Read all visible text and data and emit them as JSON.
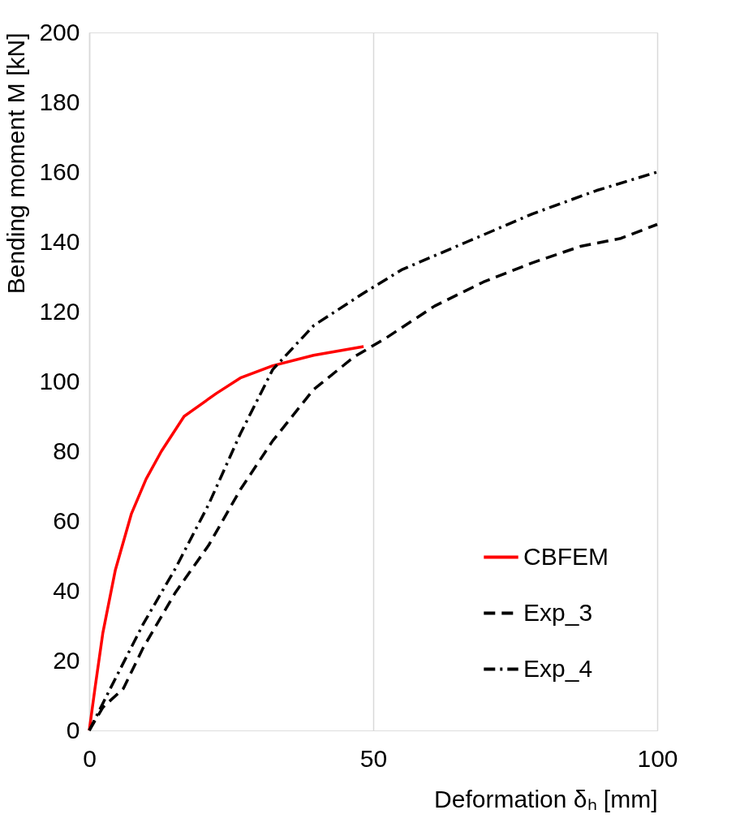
{
  "chart_data": {
    "type": "line",
    "xlabel": "Deformation δₕ [mm]",
    "ylabel": "Bending moment M [kN]",
    "xlim": [
      0,
      100
    ],
    "xticks": [
      0,
      50,
      100
    ],
    "ylim": [
      0,
      200
    ],
    "yticks": [
      0,
      20,
      40,
      60,
      80,
      100,
      120,
      140,
      160,
      180,
      200
    ],
    "grid": "x",
    "legend": "bottom right",
    "series": [
      {
        "name": "CBFEM",
        "color": "#ff0000",
        "line_style": "solid",
        "x": [
          0,
          1,
          2.4,
          4.6,
          7.4,
          10,
          12.7,
          16.7,
          22.4,
          26.6,
          32.3,
          39.5,
          48.3
        ],
        "values": [
          0,
          12,
          28,
          46,
          62,
          72,
          80,
          90,
          96.6,
          101,
          104.5,
          107.5,
          110
        ]
      },
      {
        "name": "Exp_3",
        "color": "#000000",
        "line_style": "dashed",
        "x": [
          0,
          2.4,
          6,
          9.5,
          15.2,
          21,
          26.6,
          32.3,
          39.5,
          46.6,
          52.3,
          60.8,
          69.4,
          78,
          86.5,
          93.6,
          100
        ],
        "values": [
          0,
          6.6,
          12,
          23.7,
          39.6,
          53,
          69,
          83,
          97.7,
          107,
          112.5,
          121.6,
          128.5,
          134,
          138.7,
          141,
          145
        ]
      },
      {
        "name": "Exp_4",
        "color": "#000000",
        "line_style": "dashdot",
        "x": [
          0,
          3.8,
          9.5,
          15.2,
          21,
          26.6,
          32.3,
          39.5,
          48,
          55,
          66.5,
          78,
          89.3,
          100
        ],
        "values": [
          0,
          12.3,
          30.5,
          46.5,
          64.7,
          85,
          103.4,
          116,
          125,
          132,
          140,
          148,
          154.7,
          160
        ]
      }
    ]
  }
}
